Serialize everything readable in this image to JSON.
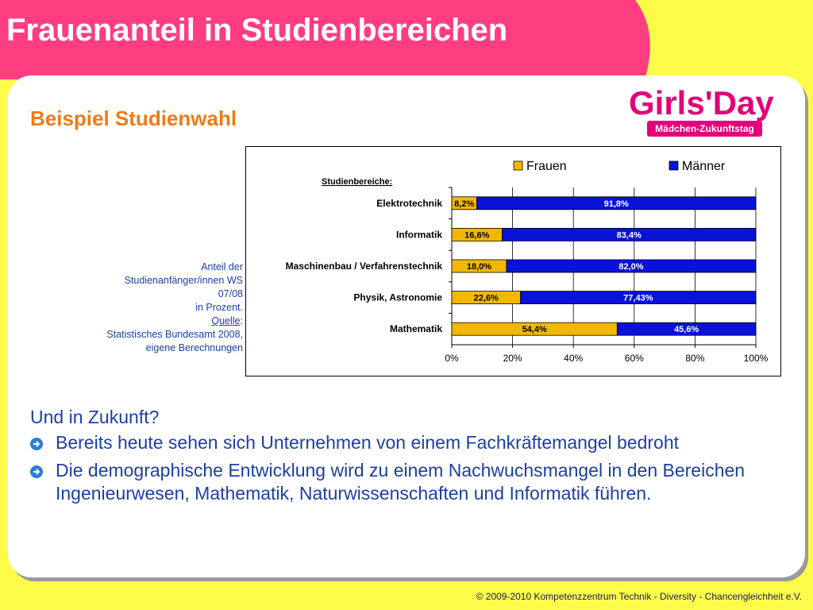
{
  "slide": {
    "title": "Frauenanteil in Studienbereichen",
    "subtitle": "Beispiel Studienwahl",
    "colors": {
      "title_band": "#ff3d80",
      "accent": "#f07a17",
      "text": "#1b3fa6",
      "frauen": "#f2b800",
      "maenner": "#0a12d8"
    }
  },
  "logo": {
    "text_main": "Girls'Day",
    "text_sub": "Mädchen-Zukunftstag"
  },
  "source_note": {
    "line1": "Anteil der",
    "line2": "Studienanfänger/innen WS",
    "line3": "07/08",
    "line4": "in Prozent.",
    "source_label": "Quelle",
    "source_colon": ":",
    "line5": "Statistisches Bundesamt 2008,",
    "line6": "eigene Berechnungen"
  },
  "chart_data": {
    "type": "bar",
    "orientation": "horizontal",
    "stacked": "percent",
    "category_axis_title": "Studienbereiche:",
    "categories": [
      "Elektrotechnik",
      "Informatik",
      "Maschinenbau / Verfahrenstechnik",
      "Physik, Astronomie",
      "Mathematik"
    ],
    "series": [
      {
        "name": "Frauen",
        "values": [
          8.2,
          16.6,
          18.0,
          22.6,
          54.4
        ],
        "labels": [
          "8,2%",
          "16,6%",
          "18,0%",
          "22,6%",
          "54,4%"
        ],
        "color": "#f2b800"
      },
      {
        "name": "Männer",
        "values": [
          91.8,
          83.4,
          82.0,
          77.43,
          45.6
        ],
        "labels": [
          "91,8%",
          "83,4%",
          "82,0%",
          "77,43%",
          "45,6%"
        ],
        "color": "#0a12d8"
      }
    ],
    "xlim": [
      0,
      100
    ],
    "x_ticks": [
      "0%",
      "20%",
      "40%",
      "60%",
      "80%",
      "100%"
    ],
    "legend": "top-right",
    "grid": true
  },
  "body": {
    "heading": "Und in Zukunft?",
    "bullets": [
      "Bereits heute sehen sich Unternehmen von einem Fachkräftemangel bedroht",
      "Die demographische Entwicklung wird zu einem Nachwuchsmangel in den Bereichen Ingenieurwesen, Mathematik, Naturwissenschaften und Informatik führen."
    ]
  },
  "footer": "© 2009-2010  Kompetenzzentrum Technik - Diversity - Chancengleichheit  e.V."
}
